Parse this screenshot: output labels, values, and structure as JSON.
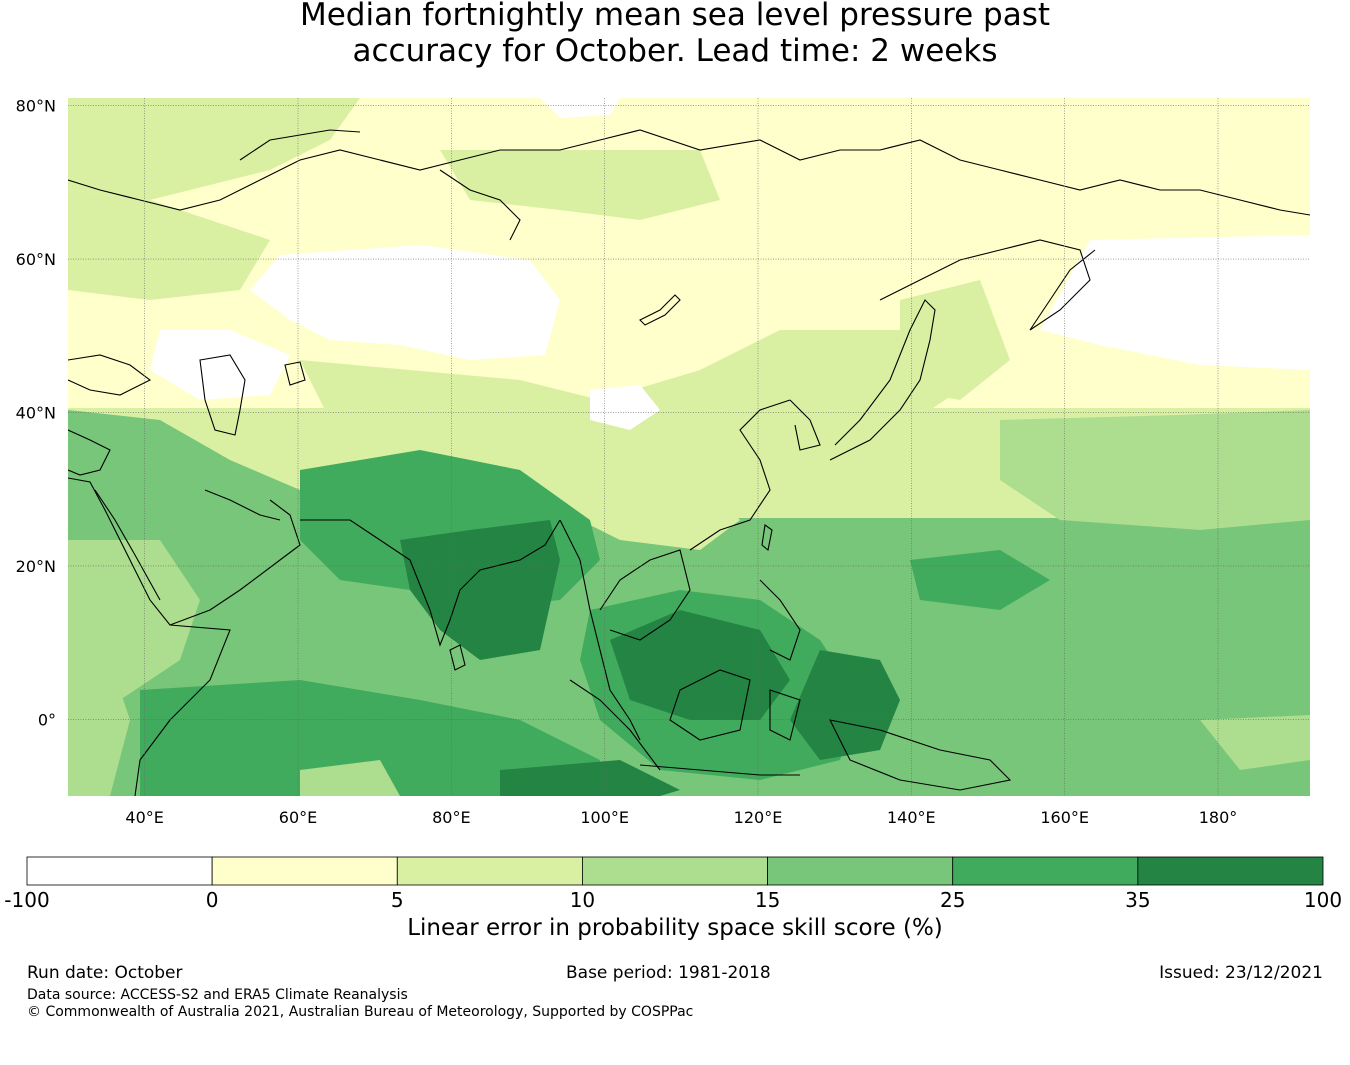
{
  "title": {
    "line1": "Median fortnightly mean sea level pressure past",
    "line2": "accuracy for October. Lead time: 2 weeks"
  },
  "map": {
    "projection": "equirectangular",
    "lon_range": [
      30,
      192
    ],
    "lat_range": [
      -10,
      81
    ],
    "lon_ticks": [
      {
        "value": 40,
        "label": "40°E"
      },
      {
        "value": 60,
        "label": "60°E"
      },
      {
        "value": 80,
        "label": "80°E"
      },
      {
        "value": 100,
        "label": "100°E"
      },
      {
        "value": 120,
        "label": "120°E"
      },
      {
        "value": 140,
        "label": "140°E"
      },
      {
        "value": 160,
        "label": "160°E"
      },
      {
        "value": 180,
        "label": "180°"
      }
    ],
    "lat_ticks": [
      {
        "value": 80,
        "label": "80°N"
      },
      {
        "value": 60,
        "label": "60°N"
      },
      {
        "value": 40,
        "label": "40°N"
      },
      {
        "value": 20,
        "label": "20°N"
      },
      {
        "value": 0,
        "label": "0°"
      }
    ],
    "gridlines": true
  },
  "colorbar": {
    "label": "Linear error in probability space skill score (%)",
    "bins": [
      {
        "from": -100,
        "to": 0,
        "color": "#ffffff"
      },
      {
        "from": 0,
        "to": 5,
        "color": "#ffffcc"
      },
      {
        "from": 5,
        "to": 10,
        "color": "#d9f0a3"
      },
      {
        "from": 10,
        "to": 15,
        "color": "#addd8e"
      },
      {
        "from": 15,
        "to": 25,
        "color": "#78c679"
      },
      {
        "from": 25,
        "to": 35,
        "color": "#41ab5d"
      },
      {
        "from": 35,
        "to": 100,
        "color": "#238443"
      }
    ],
    "tick_labels": [
      "-100",
      "0",
      "5",
      "10",
      "15",
      "25",
      "35",
      "100"
    ]
  },
  "footer": {
    "run_date": "Run date: October",
    "base_period": "Base period: 1981-2018",
    "issued": "Issued: 23/12/2021",
    "data_source": "Data source: ACCESS-S2 and ERA5 Climate Reanalysis",
    "copyright": "© Commonwealth of Australia 2021, Australian Bureau of Meteorology, Supported by COSPPac"
  }
}
